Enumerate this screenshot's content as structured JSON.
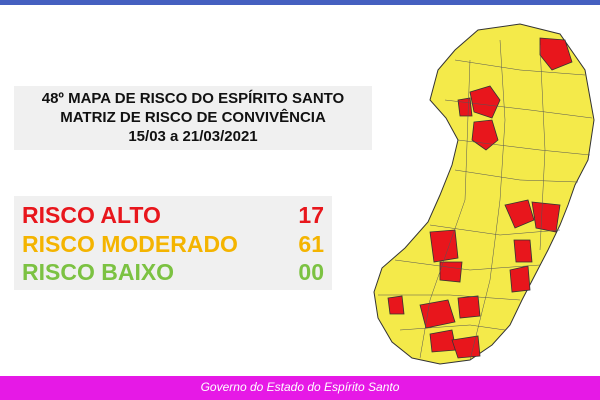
{
  "header": {
    "title_lines": [
      "48º MAPA DE RISCO DO ESPÍRITO SANTO",
      "MATRIZ DE RISCO DE CONVIVÊNCIA",
      "15/03 a 21/03/2021"
    ]
  },
  "risks": [
    {
      "label": "RISCO ALTO",
      "count": "17"
    },
    {
      "label": "RISCO MODERADO",
      "count": "61"
    },
    {
      "label": "RISCO BAIXO",
      "count": "00"
    }
  ],
  "footer": "Governo do Estado do Espírito Santo"
}
